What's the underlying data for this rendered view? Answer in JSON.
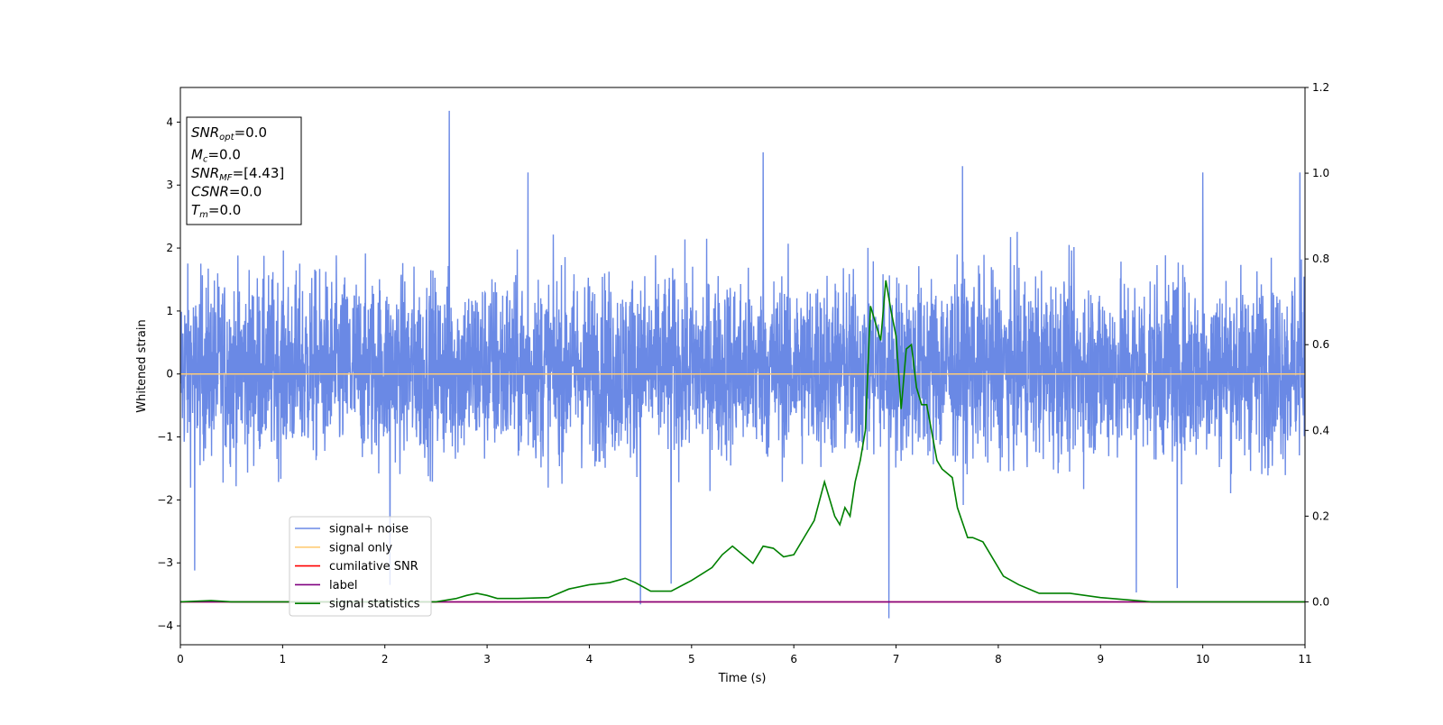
{
  "chart_data": {
    "type": "line",
    "xlabel": "Time (s)",
    "ylabel": "Whitened strain",
    "xlim": [
      0,
      11
    ],
    "ylim": [
      -4.3,
      4.55
    ],
    "y2lim": [
      -0.1,
      1.2
    ],
    "x_ticks": [
      0,
      1,
      2,
      3,
      4,
      5,
      6,
      7,
      8,
      9,
      10,
      11
    ],
    "x_tick_labels": [
      "0",
      "1",
      "2",
      "3",
      "4",
      "5",
      "6",
      "7",
      "8",
      "9",
      "10",
      "11"
    ],
    "y_ticks": [
      -4,
      -3,
      -2,
      -1,
      0,
      1,
      2,
      3,
      4
    ],
    "y_tick_labels": [
      "−4",
      "−3",
      "−2",
      "−1",
      "0",
      "1",
      "2",
      "3",
      "4"
    ],
    "y2_ticks": [
      0.0,
      0.2,
      0.4,
      0.6,
      0.8,
      1.0,
      1.2
    ],
    "y2_tick_labels": [
      "0.0",
      "0.2",
      "0.4",
      "0.6",
      "0.8",
      "1.0",
      "1.2"
    ],
    "grid": false,
    "legend_placement": "lower-left",
    "legend": [
      {
        "label": "signal+ noise",
        "color": "#6a89e5"
      },
      {
        "label": "signal only",
        "color": "#ffcc77"
      },
      {
        "label": "cumilative SNR",
        "color": "#ff0000"
      },
      {
        "label": "label",
        "color": "#800080"
      },
      {
        "label": "signal statistics",
        "color": "#008000"
      }
    ],
    "annotation": {
      "lines": [
        {
          "sym": "SNR",
          "sub": "opt",
          "val": "=0.0"
        },
        {
          "sym": "M",
          "sub": "c",
          "val": "=0.0"
        },
        {
          "sym": "SNR",
          "sub": "MF",
          "val": "=[4.43]"
        },
        {
          "sym": "CSNR",
          "sub": "",
          "val": "=0.0"
        },
        {
          "sym": "T",
          "sub": "m",
          "val": "=0.0"
        }
      ]
    },
    "series": [
      {
        "name": "signal+ noise",
        "axis": "left",
        "color": "#6a89e5",
        "style": "dense noise, approx. range -1.8 to 2.3 with outliers",
        "outliers": [
          {
            "x": 2.63,
            "y": 4.18
          },
          {
            "x": 5.7,
            "y": 3.52
          },
          {
            "x": 7.65,
            "y": 3.3
          },
          {
            "x": 3.4,
            "y": 3.2
          },
          {
            "x": 10.0,
            "y": 3.2
          },
          {
            "x": 10.95,
            "y": 3.2
          },
          {
            "x": 6.93,
            "y": -3.88
          },
          {
            "x": 4.5,
            "y": -3.66
          },
          {
            "x": 9.35,
            "y": -3.47
          },
          {
            "x": 9.75,
            "y": -3.4
          },
          {
            "x": 4.8,
            "y": -3.33
          },
          {
            "x": 2.05,
            "y": -3.35
          },
          {
            "x": 0.14,
            "y": -3.12
          }
        ]
      },
      {
        "name": "signal only",
        "axis": "left",
        "color": "#ffcc77",
        "x": [
          0,
          11
        ],
        "y": [
          0,
          0
        ]
      },
      {
        "name": "cumilative SNR",
        "axis": "right",
        "color": "#ff0000",
        "x": [
          0,
          11
        ],
        "y": [
          0,
          0
        ]
      },
      {
        "name": "label",
        "axis": "right",
        "color": "#800080",
        "x": [
          0,
          11
        ],
        "y": [
          0,
          0
        ]
      },
      {
        "name": "signal statistics",
        "axis": "right",
        "color": "#008000",
        "x": [
          0,
          0.3,
          0.5,
          1.0,
          2.0,
          2.5,
          2.7,
          2.8,
          2.9,
          3.0,
          3.1,
          3.3,
          3.6,
          3.8,
          4.0,
          4.2,
          4.35,
          4.45,
          4.6,
          4.8,
          5.0,
          5.2,
          5.3,
          5.4,
          5.5,
          5.6,
          5.7,
          5.8,
          5.9,
          6.0,
          6.1,
          6.2,
          6.3,
          6.35,
          6.4,
          6.45,
          6.5,
          6.55,
          6.6,
          6.65,
          6.7,
          6.75,
          6.8,
          6.85,
          6.9,
          6.95,
          7.0,
          7.05,
          7.1,
          7.15,
          7.2,
          7.25,
          7.3,
          7.4,
          7.45,
          7.55,
          7.6,
          7.7,
          7.75,
          7.85,
          7.95,
          8.05,
          8.2,
          8.4,
          8.7,
          9.0,
          9.5,
          10,
          11
        ],
        "y": [
          0.0,
          0.003,
          0.0,
          0.0,
          0.0,
          0.0,
          0.008,
          0.015,
          0.02,
          0.015,
          0.008,
          0.008,
          0.01,
          0.03,
          0.04,
          0.045,
          0.055,
          0.045,
          0.025,
          0.025,
          0.05,
          0.08,
          0.11,
          0.13,
          0.11,
          0.09,
          0.13,
          0.125,
          0.105,
          0.11,
          0.15,
          0.19,
          0.28,
          0.24,
          0.2,
          0.18,
          0.22,
          0.2,
          0.28,
          0.33,
          0.4,
          0.69,
          0.65,
          0.61,
          0.75,
          0.68,
          0.62,
          0.45,
          0.59,
          0.6,
          0.5,
          0.46,
          0.46,
          0.33,
          0.31,
          0.29,
          0.22,
          0.15,
          0.15,
          0.14,
          0.1,
          0.06,
          0.04,
          0.02,
          0.02,
          0.01,
          0.0,
          0.0,
          0.0
        ]
      }
    ]
  }
}
